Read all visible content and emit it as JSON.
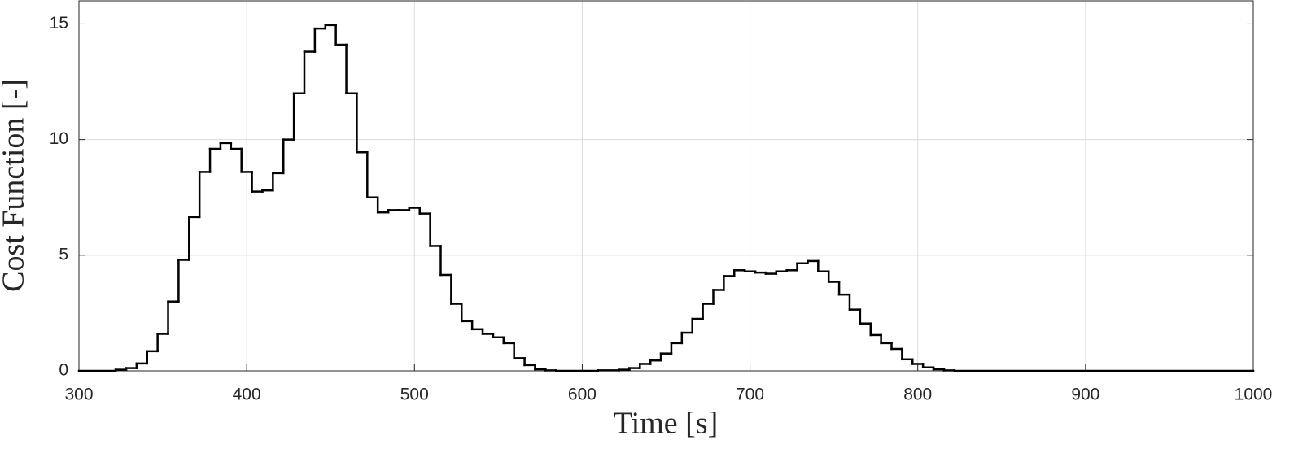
{
  "chart_data": {
    "type": "stairs",
    "xlabel": "Time [s]",
    "ylabel": "Cost Function [-]",
    "x": [
      300,
      321.875,
      328.125,
      334.375,
      340.625,
      346.875,
      353.125,
      359.375,
      365.625,
      371.875,
      378.125,
      384.375,
      390.625,
      396.875,
      403.125,
      409.375,
      415.625,
      421.875,
      428.125,
      434.375,
      440.625,
      446.875,
      453.125,
      459.375,
      465.625,
      471.875,
      478.125,
      484.375,
      490.625,
      496.875,
      503.125,
      509.375,
      515.625,
      521.875,
      528.125,
      534.375,
      540.625,
      546.875,
      553.125,
      559.375,
      565.625,
      571.875,
      578.125,
      584.375,
      609.375,
      621.875,
      628.125,
      634.375,
      640.625,
      646.875,
      653.125,
      659.375,
      665.625,
      671.875,
      678.125,
      684.375,
      690.625,
      696.875,
      703.125,
      709.375,
      715.625,
      721.875,
      728.125,
      734.375,
      740.625,
      746.875,
      753.125,
      759.375,
      765.625,
      771.875,
      778.125,
      784.375,
      790.625,
      796.875,
      803.125,
      809.375,
      815.625,
      821.875
    ],
    "values": [
      0,
      0.05,
      0.12,
      0.32,
      0.85,
      1.6,
      3.0,
      4.8,
      6.65,
      8.6,
      9.6,
      9.85,
      9.6,
      8.6,
      7.75,
      7.8,
      8.55,
      10.0,
      12.0,
      13.8,
      14.8,
      14.95,
      14.1,
      12.0,
      9.45,
      7.5,
      6.85,
      6.95,
      6.95,
      7.05,
      6.8,
      5.4,
      4.15,
      2.9,
      2.15,
      1.8,
      1.6,
      1.45,
      1.2,
      0.55,
      0.25,
      0.07,
      0.02,
      0,
      0.02,
      0.05,
      0.12,
      0.3,
      0.45,
      0.75,
      1.2,
      1.65,
      2.25,
      2.9,
      3.5,
      4.1,
      4.35,
      4.3,
      4.25,
      4.2,
      4.3,
      4.35,
      4.65,
      4.75,
      4.3,
      3.85,
      3.3,
      2.65,
      2.05,
      1.55,
      1.2,
      0.95,
      0.5,
      0.3,
      0.15,
      0.07,
      0.02,
      0
    ],
    "color": "#000000",
    "xlim": [
      300,
      1000
    ],
    "xticks": [
      300,
      400,
      500,
      600,
      700,
      800,
      900,
      1000
    ],
    "ylim": [
      0,
      16
    ],
    "yticks": [
      0,
      5,
      10,
      15
    ],
    "grid": true
  }
}
